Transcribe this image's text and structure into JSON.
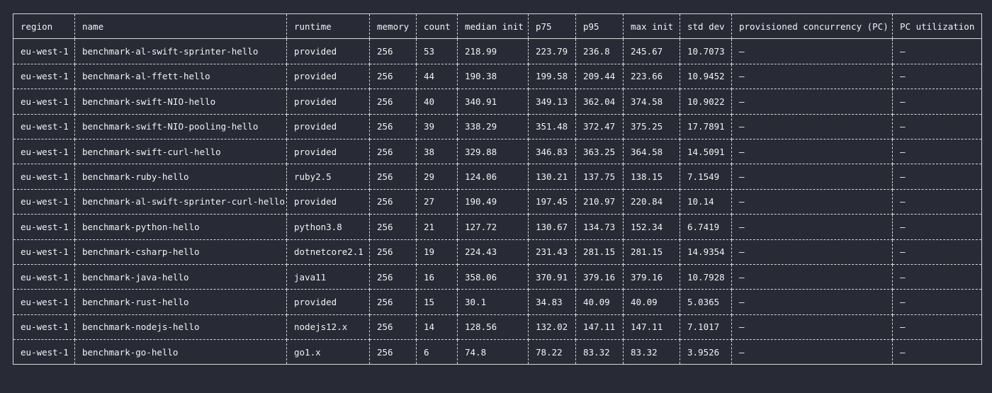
{
  "table": {
    "columns": [
      "region",
      "name",
      "runtime",
      "memory",
      "count",
      "median init",
      "p75",
      "p95",
      "max init",
      "std dev",
      "provisioned concurrency (PC)",
      "PC utilization"
    ],
    "rows": [
      [
        "eu-west-1",
        "benchmark-al-swift-sprinter-hello",
        "provided",
        "256",
        "53",
        "218.99",
        "223.79",
        "236.8",
        "245.67",
        "10.7073",
        "–",
        "–"
      ],
      [
        "eu-west-1",
        "benchmark-al-ffett-hello",
        "provided",
        "256",
        "44",
        "190.38",
        "199.58",
        "209.44",
        "223.66",
        "10.9452",
        "–",
        "–"
      ],
      [
        "eu-west-1",
        "benchmark-swift-NIO-hello",
        "provided",
        "256",
        "40",
        "340.91",
        "349.13",
        "362.04",
        "374.58",
        "10.9022",
        "–",
        "–"
      ],
      [
        "eu-west-1",
        "benchmark-swift-NIO-pooling-hello",
        "provided",
        "256",
        "39",
        "338.29",
        "351.48",
        "372.47",
        "375.25",
        "17.7891",
        "–",
        "–"
      ],
      [
        "eu-west-1",
        "benchmark-swift-curl-hello",
        "provided",
        "256",
        "38",
        "329.88",
        "346.83",
        "363.25",
        "364.58",
        "14.5091",
        "–",
        "–"
      ],
      [
        "eu-west-1",
        "benchmark-ruby-hello",
        "ruby2.5",
        "256",
        "29",
        "124.06",
        "130.21",
        "137.75",
        "138.15",
        "7.1549",
        "–",
        "–"
      ],
      [
        "eu-west-1",
        "benchmark-al-swift-sprinter-curl-hello",
        "provided",
        "256",
        "27",
        "190.49",
        "197.45",
        "210.97",
        "220.84",
        "10.14",
        "–",
        "–"
      ],
      [
        "eu-west-1",
        "benchmark-python-hello",
        "python3.8",
        "256",
        "21",
        "127.72",
        "130.67",
        "134.73",
        "152.34",
        "6.7419",
        "–",
        "–"
      ],
      [
        "eu-west-1",
        "benchmark-csharp-hello",
        "dotnetcore2.1",
        "256",
        "19",
        "224.43",
        "231.43",
        "281.15",
        "281.15",
        "14.9354",
        "–",
        "–"
      ],
      [
        "eu-west-1",
        "benchmark-java-hello",
        "java11",
        "256",
        "16",
        "358.06",
        "370.91",
        "379.16",
        "379.16",
        "10.7928",
        "–",
        "–"
      ],
      [
        "eu-west-1",
        "benchmark-rust-hello",
        "provided",
        "256",
        "15",
        "30.1",
        "34.83",
        "40.09",
        "40.09",
        "5.0365",
        "–",
        "–"
      ],
      [
        "eu-west-1",
        "benchmark-nodejs-hello",
        "nodejs12.x",
        "256",
        "14",
        "128.56",
        "132.02",
        "147.11",
        "147.11",
        "7.1017",
        "–",
        "–"
      ],
      [
        "eu-west-1",
        "benchmark-go-hello",
        "go1.x",
        "256",
        "6",
        "74.8",
        "78.22",
        "83.32",
        "83.32",
        "3.9526",
        "–",
        "–"
      ]
    ]
  }
}
